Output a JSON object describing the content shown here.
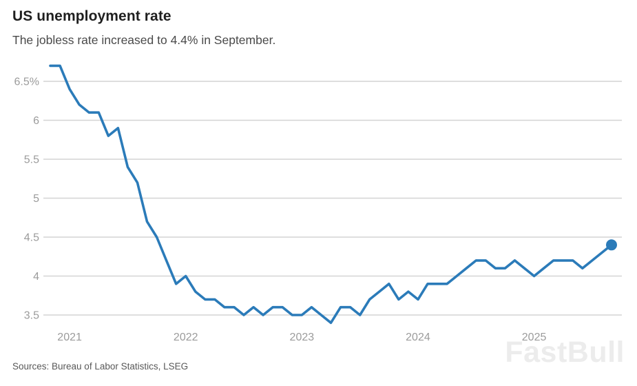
{
  "header": {
    "title": "US unemployment rate",
    "subtitle": "The jobless rate increased to 4.4% in September."
  },
  "footer": {
    "source": "Sources: Bureau of Labor Statistics, LSEG",
    "watermark": "FastBull"
  },
  "colors": {
    "line": "#2b7bb9",
    "dot": "#2b7bb9",
    "grid": "#d4d4d4",
    "axis_text": "#9b9b9b",
    "title": "#1f1f1f",
    "subtitle": "#4a4a4a",
    "source": "#585858",
    "watermark": "#ececec"
  },
  "chart_data": {
    "type": "line",
    "title": "US unemployment rate",
    "subtitle": "The jobless rate increased to 4.4% in September.",
    "unit": "%",
    "x_start": "Nov 2020",
    "x_end": "Sep 2025",
    "points_per_year": 12,
    "x_tick_labels": [
      "2021",
      "2022",
      "2023",
      "2024",
      "2025"
    ],
    "x_tick_indices": [
      2,
      14,
      26,
      38,
      50
    ],
    "y_ticks": [
      6.5,
      6.0,
      5.5,
      5.0,
      4.5,
      4.0,
      3.5
    ],
    "y_tick_labels": [
      "6.5%",
      "6",
      "5.5",
      "5",
      "4.5",
      "4",
      "3.5"
    ],
    "ylim": [
      3.3,
      6.8
    ],
    "grid": "horizontal",
    "legend_position": "none",
    "values": [
      6.7,
      6.7,
      6.4,
      6.2,
      6.1,
      6.1,
      5.8,
      5.9,
      5.4,
      5.2,
      4.7,
      4.5,
      4.2,
      3.9,
      4.0,
      3.8,
      3.7,
      3.7,
      3.6,
      3.6,
      3.5,
      3.6,
      3.5,
      3.6,
      3.6,
      3.5,
      3.5,
      3.6,
      3.5,
      3.4,
      3.6,
      3.6,
      3.5,
      3.7,
      3.8,
      3.9,
      3.7,
      3.8,
      3.7,
      3.9,
      3.9,
      3.9,
      4.0,
      4.1,
      4.2,
      4.2,
      4.1,
      4.1,
      4.2,
      4.1,
      4.0,
      4.1,
      4.2,
      4.2,
      4.2,
      4.1,
      4.2,
      4.3,
      4.4
    ],
    "last_point": {
      "month": "September",
      "value": 4.4,
      "marker": "dot"
    }
  }
}
